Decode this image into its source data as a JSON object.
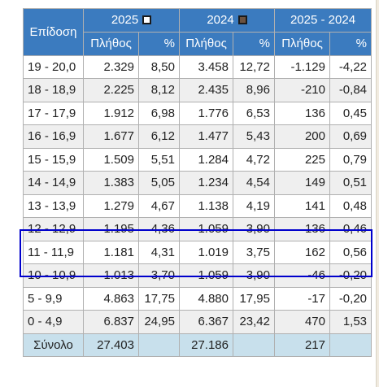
{
  "header": {
    "episodes": "Επίδοση",
    "year1": "2025",
    "year2": "2024",
    "diff": "2025 - 2024",
    "count": "Πλήθος",
    "pct": "%"
  },
  "colors": {
    "header_bg": "#3b7bbf",
    "year1_swatch": "#ffffff",
    "year2_swatch": "#6b5240",
    "total_bg": "#c8e0ec",
    "highlight": "#0000cc"
  },
  "rows": [
    {
      "range": "19 - 20,0",
      "c25": "2.329",
      "p25": "8,50",
      "c24": "3.458",
      "p24": "12,72",
      "dc": "-1.129",
      "dp": "-4,22"
    },
    {
      "range": "18 - 18,9",
      "c25": "2.225",
      "p25": "8,12",
      "c24": "2.435",
      "p24": "8,96",
      "dc": "-210",
      "dp": "-0,84"
    },
    {
      "range": "17 - 17,9",
      "c25": "1.912",
      "p25": "6,98",
      "c24": "1.776",
      "p24": "6,53",
      "dc": "136",
      "dp": "0,45"
    },
    {
      "range": "16 - 16,9",
      "c25": "1.677",
      "p25": "6,12",
      "c24": "1.477",
      "p24": "5,43",
      "dc": "200",
      "dp": "0,69"
    },
    {
      "range": "15 - 15,9",
      "c25": "1.509",
      "p25": "5,51",
      "c24": "1.284",
      "p24": "4,72",
      "dc": "225",
      "dp": "0,79"
    },
    {
      "range": "14 - 14,9",
      "c25": "1.383",
      "p25": "5,05",
      "c24": "1.234",
      "p24": "4,54",
      "dc": "149",
      "dp": "0,51"
    },
    {
      "range": "13 - 13,9",
      "c25": "1.279",
      "p25": "4,67",
      "c24": "1.138",
      "p24": "4,19",
      "dc": "141",
      "dp": "0,48"
    },
    {
      "range": "12 - 12,9",
      "c25": "1.195",
      "p25": "4,36",
      "c24": "1.059",
      "p24": "3,90",
      "dc": "136",
      "dp": "0,46"
    },
    {
      "range": "11 - 11,9",
      "c25": "1.181",
      "p25": "4,31",
      "c24": "1.019",
      "p24": "3,75",
      "dc": "162",
      "dp": "0,56"
    },
    {
      "range": "10 - 10,9",
      "c25": "1.013",
      "p25": "3,70",
      "c24": "1.059",
      "p24": "3,90",
      "dc": "-46",
      "dp": "-0,20"
    },
    {
      "range": "5 - 9,9",
      "c25": "4.863",
      "p25": "17,75",
      "c24": "4.880",
      "p24": "17,95",
      "dc": "-17",
      "dp": "-0,20"
    },
    {
      "range": "0 - 4,9",
      "c25": "6.837",
      "p25": "24,95",
      "c24": "6.367",
      "p24": "23,42",
      "dc": "470",
      "dp": "1,53"
    }
  ],
  "total": {
    "label": "Σύνολο",
    "c25": "27.403",
    "p25": "",
    "c24": "27.186",
    "p24": "",
    "dc": "217",
    "dp": ""
  }
}
